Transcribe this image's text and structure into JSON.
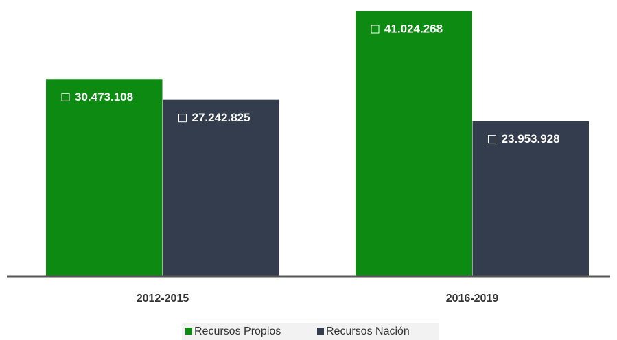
{
  "chart_data": {
    "type": "bar",
    "categories": [
      "2012-2015",
      "2016-2019"
    ],
    "series": [
      {
        "name": "Recursos Propios",
        "color": "#0d8a12",
        "values": [
          30473108,
          41024268
        ],
        "value_labels": [
          "30.473.108",
          "41.024.268"
        ]
      },
      {
        "name": "Recursos Nación",
        "color": "#333d4e",
        "values": [
          27242825,
          23953928
        ],
        "value_labels": [
          "27.242.825",
          "23.953.928"
        ]
      }
    ]
  }
}
